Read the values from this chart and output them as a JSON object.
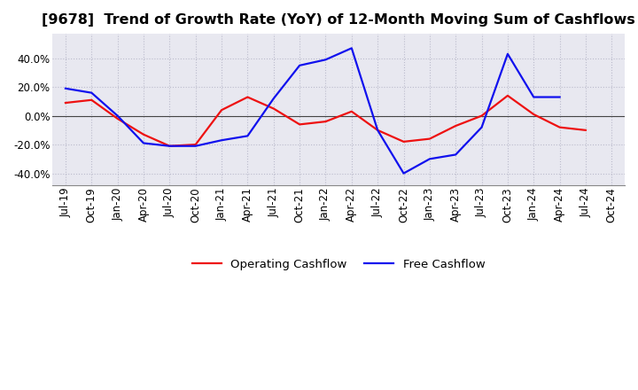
{
  "title": "[9678]  Trend of Growth Rate (YoY) of 12-Month Moving Sum of Cashflows",
  "x_labels": [
    "Jul-19",
    "Oct-19",
    "Jan-20",
    "Apr-20",
    "Jul-20",
    "Oct-20",
    "Jan-21",
    "Apr-21",
    "Jul-21",
    "Oct-21",
    "Jan-22",
    "Apr-22",
    "Jul-22",
    "Oct-22",
    "Jan-23",
    "Apr-23",
    "Jul-23",
    "Oct-23",
    "Jan-24",
    "Apr-24",
    "Jul-24",
    "Oct-24"
  ],
  "operating_cf": [
    0.09,
    0.11,
    -0.02,
    -0.13,
    -0.21,
    -0.2,
    0.04,
    0.13,
    0.05,
    -0.06,
    -0.04,
    0.03,
    -0.1,
    -0.18,
    -0.16,
    -0.07,
    0.0,
    0.14,
    0.01,
    -0.08,
    -0.1,
    null
  ],
  "free_cf": [
    0.19,
    0.16,
    0.0,
    -0.19,
    -0.21,
    -0.21,
    -0.17,
    -0.14,
    0.12,
    0.35,
    0.39,
    0.47,
    -0.1,
    -0.4,
    -0.3,
    -0.27,
    -0.08,
    0.43,
    0.13,
    0.13,
    null,
    null
  ],
  "ylim": [
    -0.48,
    0.57
  ],
  "yticks": [
    -0.4,
    -0.2,
    0.0,
    0.2,
    0.4
  ],
  "operating_color": "#EE1111",
  "free_color": "#1111EE",
  "legend_labels": [
    "Operating Cashflow",
    "Free Cashflow"
  ],
  "background_color": "#FFFFFF",
  "plot_bg_color": "#E8E8F0",
  "grid_color": "#BBBBCC",
  "title_fontsize": 11.5,
  "axis_fontsize": 8.5,
  "legend_fontsize": 9.5,
  "linewidth": 1.6
}
